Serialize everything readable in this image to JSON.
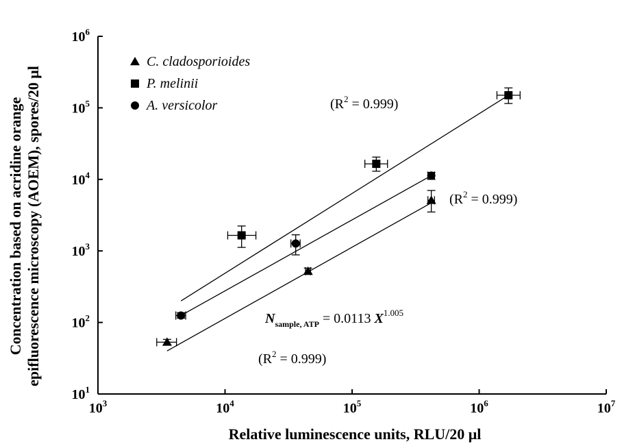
{
  "chart_data": {
    "type": "scatter",
    "xlabel": "Relative luminescence units, RLU/20 μl",
    "ylabel_line1": "Concentration based on acridine orange",
    "ylabel_line2": "epifluorescence microscopy (AOEM), spores/20 μl",
    "xscale": "log",
    "yscale": "log",
    "xlim": [
      1000,
      10000000
    ],
    "ylim": [
      10,
      1000000
    ],
    "x_ticks": [
      {
        "base": "10",
        "exp": "3",
        "value": 1000
      },
      {
        "base": "10",
        "exp": "4",
        "value": 10000
      },
      {
        "base": "10",
        "exp": "5",
        "value": 100000
      },
      {
        "base": "10",
        "exp": "6",
        "value": 1000000
      },
      {
        "base": "10",
        "exp": "7",
        "value": 10000000
      }
    ],
    "y_ticks": [
      {
        "base": "10",
        "exp": "1",
        "value": 10
      },
      {
        "base": "10",
        "exp": "2",
        "value": 100
      },
      {
        "base": "10",
        "exp": "3",
        "value": 1000
      },
      {
        "base": "10",
        "exp": "4",
        "value": 10000
      },
      {
        "base": "10",
        "exp": "5",
        "value": 100000
      },
      {
        "base": "10",
        "exp": "6",
        "value": 1000000
      }
    ],
    "grid": false,
    "legend_position": "top-left",
    "series": [
      {
        "name": "C. cladosporioides",
        "marker": "triangle",
        "points": [
          {
            "x": 3500,
            "y": 53,
            "x_low": 2900,
            "x_high": 4150,
            "y_low": 49,
            "y_high": 58
          },
          {
            "x": 45000,
            "y": 520,
            "x_low": 43000,
            "x_high": 47000,
            "y_low": 470,
            "y_high": 575
          },
          {
            "x": 420000,
            "y": 5100,
            "x_low": 395000,
            "x_high": 445000,
            "y_low": 3500,
            "y_high": 7000
          }
        ],
        "fit": {
          "x": [
            3500,
            420000
          ],
          "y": [
            40,
            4700
          ]
        },
        "r2_label": "(R² = 0.999)"
      },
      {
        "name": "P. melinii",
        "marker": "square",
        "points": [
          {
            "x": 13500,
            "y": 1650,
            "x_low": 10500,
            "x_high": 17500,
            "y_low": 1120,
            "y_high": 2230
          },
          {
            "x": 155000,
            "y": 16500,
            "x_low": 126000,
            "x_high": 190000,
            "y_low": 13000,
            "y_high": 20500
          },
          {
            "x": 1700000,
            "y": 150000,
            "x_low": 1380000,
            "x_high": 2100000,
            "y_low": 115000,
            "y_high": 190000
          }
        ],
        "fit": {
          "x": [
            4500,
            1700000
          ],
          "y": [
            200,
            150000
          ]
        },
        "r2_label": "(R² = 0.999)"
      },
      {
        "name": "A. versicolor",
        "marker": "circle",
        "points": [
          {
            "x": 4500,
            "y": 125,
            "x_low": 4100,
            "x_high": 4900,
            "y_low": 115,
            "y_high": 137
          },
          {
            "x": 36000,
            "y": 1270,
            "x_low": 33000,
            "x_high": 39000,
            "y_low": 880,
            "y_high": 1680
          },
          {
            "x": 420000,
            "y": 11300,
            "x_low": 395000,
            "x_high": 445000,
            "y_low": 10000,
            "y_high": 12500
          }
        ],
        "fit": {
          "x": [
            4500,
            420000
          ],
          "y": [
            125,
            11300
          ]
        },
        "r2_label": ""
      }
    ],
    "annotations": {
      "equation_prefix": "N",
      "equation_subscript": "sample, ATP",
      "equation_body": " = 0.0113 ",
      "equation_var": "X",
      "equation_exp": "1.005",
      "r2_top": "(R",
      "r2_mid": "(R",
      "r2_bottom": "(R",
      "r2_sup": "2",
      "r2_value": " = 0.999)"
    }
  }
}
